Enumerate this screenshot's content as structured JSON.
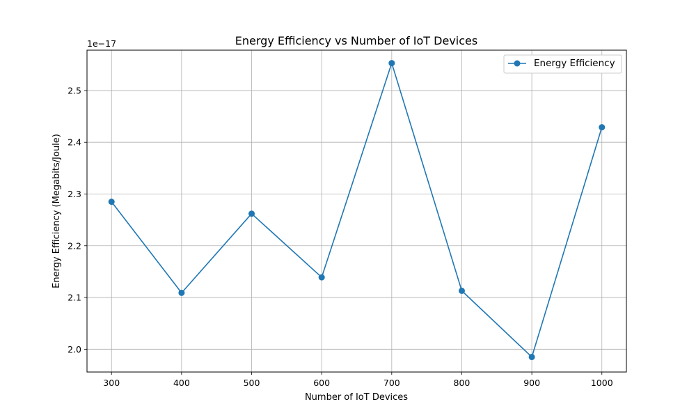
{
  "chart_data": {
    "type": "line",
    "title": "Energy Efficiency vs Number of IoT Devices",
    "xlabel": "Number of IoT Devices",
    "ylabel": "Energy Efficiency (Megabits/Joule)",
    "y_offset_label": "1e−17",
    "xlim": [
      265,
      1035
    ],
    "ylim": [
      1.956,
      2.578
    ],
    "x_ticks": [
      300,
      400,
      500,
      600,
      700,
      800,
      900,
      1000
    ],
    "x_tick_labels": [
      "300",
      "400",
      "500",
      "600",
      "700",
      "800",
      "900",
      "1000"
    ],
    "y_ticks": [
      2.0,
      2.1,
      2.2,
      2.3,
      2.4,
      2.5
    ],
    "y_tick_labels": [
      "2.0",
      "2.1",
      "2.2",
      "2.3",
      "2.4",
      "2.5"
    ],
    "grid": true,
    "legend_position": "top-right",
    "series": [
      {
        "name": "Energy Efficiency",
        "color": "#1f77b4",
        "marker": "circle",
        "x": [
          300,
          400,
          500,
          600,
          700,
          800,
          900,
          1000
        ],
        "y": [
          2.285,
          2.109,
          2.262,
          2.139,
          2.553,
          2.113,
          1.985,
          2.429
        ]
      }
    ]
  }
}
